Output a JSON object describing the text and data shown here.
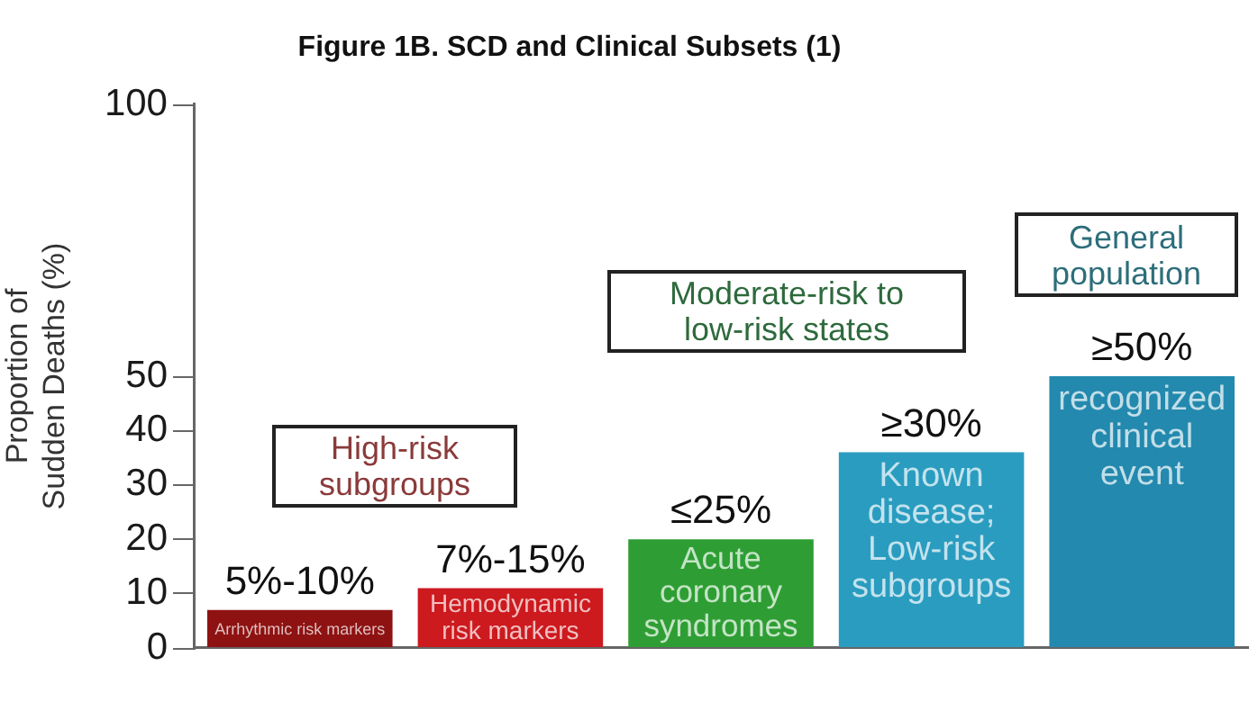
{
  "chart_data": {
    "type": "bar",
    "title": "Figure 1B. SCD and Clinical Subsets (1)",
    "ylabel": "Proportion of Sudden Deaths (%)",
    "categories": [
      "Arrhythmic risk markers",
      "Hemodynamic risk markers",
      "Acute coronary syndromes",
      "Known disease; Low-risk subgroups",
      "recognized clinical event"
    ],
    "values": [
      7,
      11,
      20,
      36,
      50
    ],
    "colors": [
      "#8e1212",
      "#cc1a1f",
      "#2e9e34",
      "#2a9cc0",
      "#2389ae"
    ],
    "ylim": [
      0,
      100
    ],
    "yticks": [
      0,
      10,
      20,
      30,
      40,
      50,
      100
    ],
    "grid": false,
    "legend": false,
    "annotations": [
      "High-risk subgroups",
      "Moderate-risk to low-risk states",
      "General population",
      {
        "text": "5%-10%",
        "x": "Arrhythmic risk markers",
        "y": 7
      },
      {
        "text": "7%-15%",
        "x": "Hemodynamic risk markers",
        "y": 11
      },
      {
        "text": "≤25%",
        "x": "Acute coronary syndromes",
        "y": 20
      },
      {
        "text": "≥30%",
        "x": "Known disease; Low-risk subgroups",
        "y": 36
      },
      {
        "text": "≥50%",
        "x": "recognized clinical event",
        "y": 50
      }
    ]
  }
}
